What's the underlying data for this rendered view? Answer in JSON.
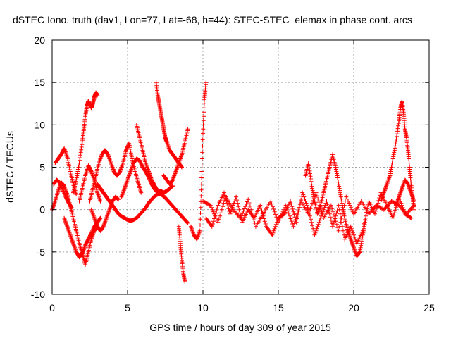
{
  "chart_data": {
    "type": "scatter",
    "title": "dSTEC Iono. truth (dav1, Lon=77, Lat=-68, h=44): STEC-STEC_elemax in phase cont. arcs",
    "xlabel": "GPS time / hours of day 309 of year 2015",
    "ylabel": "dSTEC  / TECUs",
    "xlim": [
      0,
      25
    ],
    "ylim": [
      -10,
      20
    ],
    "x_ticks": [
      0,
      5,
      10,
      15,
      20,
      25
    ],
    "y_ticks": [
      -10,
      -5,
      0,
      5,
      10,
      15,
      20
    ],
    "x_tick_labels": [
      "0",
      "5",
      "10",
      "15",
      "20",
      "25"
    ],
    "y_tick_labels": [
      "-10",
      "-5",
      "0",
      "5",
      "10",
      "15",
      "20"
    ],
    "grid": true,
    "marker": "+",
    "series": [
      {
        "name": "dSTEC",
        "color": "#ff0000",
        "arcs": [
          {
            "x": [
              0.0,
              0.2,
              0.4,
              0.6,
              0.8,
              1.0,
              1.2,
              1.4,
              1.6,
              1.8,
              2.0,
              2.2,
              2.4,
              2.6,
              2.8,
              3.0
            ],
            "y": [
              0.0,
              1.0,
              2.2,
              3.2,
              2.8,
              1.8,
              0.5,
              -1.0,
              -2.5,
              -4.0,
              -5.2,
              -6.5,
              -5.0,
              -3.5,
              -2.5,
              -2.0
            ]
          },
          {
            "x": [
              0.1,
              0.3,
              0.5,
              0.7,
              0.9,
              1.1,
              1.3
            ],
            "y": [
              3.0,
              3.5,
              3.2,
              2.4,
              1.5,
              0.8,
              0.2
            ]
          },
          {
            "x": [
              0.2,
              0.4,
              0.6,
              0.8,
              1.0,
              1.2,
              1.4,
              1.6
            ],
            "y": [
              5.5,
              6.0,
              6.5,
              7.2,
              6.2,
              4.5,
              3.0,
              1.8
            ]
          },
          {
            "x": [
              0.8,
              1.0,
              1.2,
              1.4,
              1.6,
              1.8,
              2.0,
              2.2,
              2.4,
              2.6,
              2.8,
              3.0,
              3.2
            ],
            "y": [
              -1.0,
              -2.0,
              -3.0,
              -4.0,
              -5.0,
              -5.6,
              -5.2,
              -4.2,
              -3.5,
              -2.8,
              -2.0,
              -1.5,
              -1.0
            ]
          },
          {
            "x": [
              1.4,
              1.6,
              1.8,
              2.0,
              2.1,
              2.2,
              2.3,
              2.4,
              2.5,
              2.6,
              2.7,
              2.8,
              2.9,
              3.0
            ],
            "y": [
              2.0,
              3.5,
              5.5,
              8.0,
              9.5,
              11.0,
              12.2,
              12.8,
              12.4,
              12.0,
              12.5,
              13.3,
              13.8,
              13.5
            ]
          },
          {
            "x": [
              1.8,
              2.0,
              2.2,
              2.4,
              2.6,
              2.8,
              3.0,
              3.2
            ],
            "y": [
              1.0,
              2.5,
              4.0,
              5.2,
              4.5,
              3.5,
              2.0,
              1.0
            ]
          },
          {
            "x": [
              2.5,
              2.7,
              2.9,
              3.1,
              3.3,
              3.5,
              3.7,
              3.9,
              4.1,
              4.3,
              4.5,
              4.7,
              4.9,
              5.1,
              5.3,
              5.5,
              5.7,
              5.9
            ],
            "y": [
              1.0,
              2.5,
              4.0,
              5.5,
              6.5,
              7.0,
              6.5,
              5.5,
              4.5,
              4.0,
              4.5,
              5.5,
              7.0,
              7.8,
              6.0,
              4.5,
              3.2,
              2.0
            ]
          },
          {
            "x": [
              2.6,
              2.8,
              3.0,
              3.2,
              3.4,
              3.6,
              3.8,
              4.0,
              4.2,
              4.4
            ],
            "y": [
              0.0,
              -1.0,
              -2.0,
              -2.5,
              -2.0,
              -1.0,
              0.0,
              1.0,
              1.5,
              1.2
            ]
          },
          {
            "x": [
              3.0,
              3.2,
              3.4,
              3.6,
              3.8,
              4.0,
              4.2,
              4.4,
              4.6,
              4.8,
              5.0,
              5.2,
              5.4,
              5.6,
              5.8,
              6.0,
              6.2,
              6.4,
              6.6,
              6.8,
              7.0,
              7.2,
              7.4,
              7.6,
              7.8,
              8.0,
              8.2,
              8.4,
              8.6,
              8.8,
              9.0
            ],
            "y": [
              3.0,
              2.5,
              2.0,
              1.5,
              1.0,
              0.5,
              0.0,
              -0.5,
              -0.8,
              -1.0,
              -1.2,
              -1.3,
              -1.2,
              -1.0,
              -0.6,
              -0.2,
              0.2,
              0.8,
              1.2,
              1.6,
              1.8,
              1.8,
              1.6,
              1.2,
              0.8,
              0.4,
              0.0,
              -0.4,
              -0.8,
              -1.2,
              -1.6
            ]
          },
          {
            "x": [
              4.6,
              4.8,
              5.0,
              5.2,
              5.4,
              5.6,
              5.8,
              6.0,
              6.2,
              6.4,
              6.6,
              6.8,
              7.0,
              7.2,
              7.4,
              7.6,
              7.8,
              8.0
            ],
            "y": [
              1.5,
              2.5,
              3.5,
              4.5,
              5.5,
              6.0,
              5.8,
              5.0,
              4.5,
              3.8,
              3.0,
              2.4,
              2.0,
              2.2,
              2.0,
              2.2,
              2.5,
              2.8
            ]
          },
          {
            "x": [
              5.6,
              5.8,
              6.0,
              6.2,
              6.4,
              6.6,
              6.8,
              7.0
            ],
            "y": [
              10.0,
              8.5,
              7.0,
              5.5,
              4.5,
              3.5,
              2.8,
              2.2
            ]
          },
          {
            "x": [
              6.9,
              7.0,
              7.1,
              7.2,
              7.3,
              7.4,
              7.5,
              7.6,
              7.8,
              8.0,
              8.2,
              8.4,
              8.6
            ],
            "y": [
              15.0,
              13.5,
              12.5,
              11.5,
              10.5,
              9.5,
              8.5,
              8.0,
              7.0,
              6.5,
              6.0,
              5.5,
              5.0
            ]
          },
          {
            "x": [
              7.4,
              7.6,
              7.8,
              8.0,
              8.2,
              8.4,
              8.6,
              8.8,
              9.0
            ],
            "y": [
              4.0,
              3.5,
              3.0,
              3.5,
              4.5,
              5.5,
              6.5,
              8.0,
              9.5
            ]
          },
          {
            "x": [
              8.4,
              8.5,
              8.6,
              8.7,
              8.8
            ],
            "y": [
              -2.0,
              -4.0,
              -6.0,
              -7.5,
              -8.5
            ]
          },
          {
            "x": [
              9.2,
              9.4,
              9.6,
              9.8,
              9.9,
              10.0,
              10.1,
              10.2
            ],
            "y": [
              -2.0,
              -3.0,
              -3.5,
              -2.5,
              3.0,
              9.0,
              13.0,
              15.0
            ]
          },
          {
            "x": [
              10.0,
              10.5,
              11.0,
              11.5,
              12.0,
              12.5,
              13.0,
              13.5,
              14.0,
              14.5,
              15.0,
              15.5,
              16.0,
              16.5,
              17.0,
              17.5,
              18.0,
              18.5,
              19.0,
              19.5,
              20.0,
              20.5,
              21.0,
              21.5,
              22.0,
              22.5,
              23.0,
              23.5,
              24.0
            ],
            "y": [
              1.0,
              0.5,
              -1.5,
              1.5,
              0.0,
              -1.0,
              1.2,
              -2.0,
              -0.5,
              1.0,
              -1.5,
              0.5,
              -2.0,
              1.0,
              -0.5,
              2.0,
              -1.0,
              0.5,
              -2.5,
              1.5,
              -0.5,
              1.0,
              -0.5,
              0.5,
              0.0,
              1.0,
              0.5,
              -0.5,
              0.5
            ]
          },
          {
            "x": [
              10.2,
              10.6,
              11.0,
              11.4,
              11.8,
              12.2,
              12.6,
              13.0,
              13.4,
              13.8,
              14.2,
              14.6,
              15.0,
              15.4,
              15.8,
              16.2,
              16.6,
              17.0,
              17.4,
              17.8,
              18.2,
              18.6,
              19.0,
              19.4,
              19.8,
              20.2,
              20.6,
              21.0,
              21.4,
              21.8,
              22.2,
              22.6,
              23.0,
              23.4,
              23.8
            ],
            "y": [
              -1.0,
              -2.0,
              0.5,
              2.0,
              -0.5,
              1.5,
              -1.5,
              0.0,
              -1.0,
              0.5,
              -2.0,
              -3.0,
              -1.0,
              -0.5,
              1.0,
              -1.5,
              2.0,
              0.0,
              -3.0,
              -1.0,
              1.0,
              -2.0,
              0.5,
              -3.5,
              -2.0,
              -4.0,
              -2.5,
              1.0,
              -0.5,
              2.0,
              0.5,
              -1.0,
              1.5,
              -0.5,
              -1.0
            ]
          },
          {
            "x": [
              16.8,
              17.0,
              17.2,
              17.4,
              17.6,
              17.8,
              18.0,
              18.2,
              18.4,
              18.6,
              18.8,
              19.0,
              19.2,
              19.4,
              19.6,
              19.8,
              20.0,
              20.2,
              20.4,
              20.6,
              20.8
            ],
            "y": [
              4.0,
              5.5,
              3.0,
              1.0,
              -0.5,
              0.5,
              2.0,
              3.5,
              5.0,
              6.5,
              5.0,
              3.0,
              1.0,
              -1.0,
              -2.5,
              -3.5,
              -4.5,
              -5.5,
              -5.0,
              -3.0,
              -1.0
            ]
          },
          {
            "x": [
              21.8,
              22.0,
              22.2,
              22.4,
              22.6,
              22.8,
              23.0,
              23.1,
              23.2,
              23.3,
              23.4,
              23.5,
              23.6,
              23.7,
              23.8,
              23.9,
              24.0
            ],
            "y": [
              1.0,
              2.0,
              3.0,
              4.0,
              6.0,
              8.0,
              10.5,
              12.0,
              12.8,
              11.5,
              9.5,
              8.5,
              7.0,
              5.0,
              3.0,
              1.5,
              0.0
            ]
          },
          {
            "x": [
              22.8,
              23.0,
              23.2,
              23.4,
              23.6,
              23.8,
              24.0
            ],
            "y": [
              0.5,
              1.5,
              2.5,
              3.5,
              3.0,
              2.0,
              1.0
            ]
          }
        ]
      }
    ]
  }
}
